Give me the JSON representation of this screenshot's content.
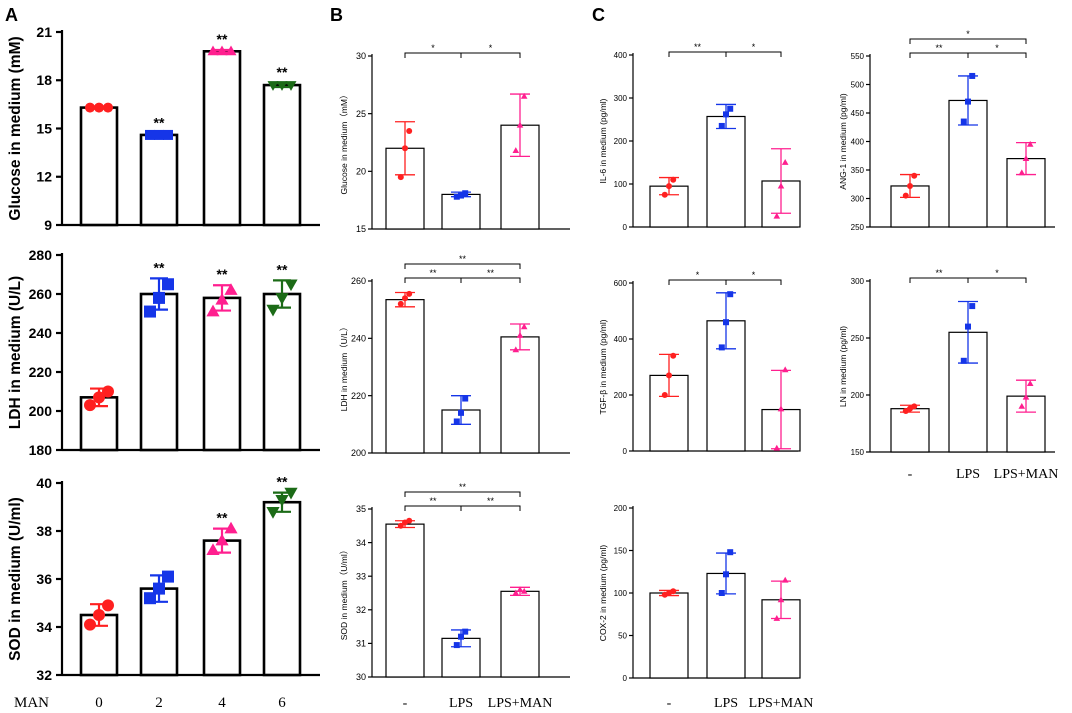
{
  "figure": {
    "panel_letters": [
      "A",
      "B",
      "C"
    ],
    "a_prefix_label": "MAN"
  },
  "chart_data": [
    {
      "id": "A1",
      "panel": "A",
      "type": "bar",
      "ylabel": "Glucose in medium (mM)",
      "categories": [
        "0",
        "2",
        "4",
        "6"
      ],
      "show_xlabels": false,
      "ylim": [
        9,
        21
      ],
      "yticks": [
        9,
        12,
        15,
        18,
        21
      ],
      "values": [
        16.3,
        14.6,
        19.8,
        17.7
      ],
      "errors": [
        0.05,
        0.1,
        0.08,
        0.12
      ],
      "points": [
        [
          16.3,
          16.3,
          16.3
        ],
        [
          14.6,
          14.6,
          14.6
        ],
        [
          19.8,
          19.8,
          19.8
        ],
        [
          17.7,
          17.7,
          17.7
        ]
      ],
      "annotations": [
        "",
        "**",
        "**",
        "**"
      ]
    },
    {
      "id": "A2",
      "panel": "A",
      "type": "bar",
      "ylabel": "LDH in medium (U/L)",
      "categories": [
        "0",
        "2",
        "4",
        "6"
      ],
      "show_xlabels": false,
      "ylim": [
        180,
        280
      ],
      "yticks": [
        180,
        200,
        220,
        240,
        260,
        280
      ],
      "values": [
        207,
        260,
        258,
        260
      ],
      "errors": [
        4.5,
        8,
        6.5,
        7
      ],
      "points": [
        [
          203,
          207,
          210
        ],
        [
          251,
          258,
          265
        ],
        [
          251,
          257,
          262
        ],
        [
          252,
          258,
          265
        ]
      ],
      "annotations": [
        "",
        "**",
        "**",
        "**"
      ]
    },
    {
      "id": "A3",
      "panel": "A",
      "type": "bar",
      "ylabel": "SOD in medium (U/ml)",
      "categories": [
        "0",
        "2",
        "4",
        "6"
      ],
      "show_xlabels": true,
      "ylim": [
        32,
        40
      ],
      "yticks": [
        32,
        34,
        36,
        38,
        40
      ],
      "values": [
        34.5,
        35.6,
        37.6,
        39.2
      ],
      "errors": [
        0.45,
        0.55,
        0.5,
        0.4
      ],
      "points": [
        [
          34.1,
          34.5,
          34.9
        ],
        [
          35.2,
          35.6,
          36.1
        ],
        [
          37.2,
          37.6,
          38.1
        ],
        [
          38.8,
          39.3,
          39.6
        ]
      ],
      "annotations": [
        "",
        "",
        "**",
        "**"
      ]
    },
    {
      "id": "B1",
      "panel": "B",
      "type": "bar",
      "ylabel": "Glucose in medium（mM）",
      "categories": [
        "-",
        "LPS",
        "LPS+MAN"
      ],
      "show_xlabels": false,
      "ylim": [
        15,
        30
      ],
      "yticks": [
        15,
        20,
        25,
        30
      ],
      "values": [
        22,
        18,
        24
      ],
      "errors": [
        2.3,
        0.2,
        2.7
      ],
      "points": [
        [
          19.5,
          22,
          23.5
        ],
        [
          17.8,
          17.9,
          18.1
        ],
        [
          21.8,
          24,
          26.5
        ]
      ],
      "brackets": [
        {
          "from": 0,
          "to": 1,
          "label": "*"
        },
        {
          "from": 1,
          "to": 2,
          "label": "*"
        }
      ]
    },
    {
      "id": "B2",
      "panel": "B",
      "type": "bar",
      "ylabel": "LDH in medium（U/L）",
      "categories": [
        "-",
        "LPS",
        "LPS+MAN"
      ],
      "show_xlabels": false,
      "ylim": [
        200,
        260
      ],
      "yticks": [
        200,
        220,
        240,
        260
      ],
      "values": [
        253.5,
        215,
        240.5
      ],
      "errors": [
        2.5,
        5,
        4.5
      ],
      "points": [
        [
          252,
          254,
          255.5
        ],
        [
          211,
          214,
          219
        ],
        [
          236,
          241,
          244
        ]
      ],
      "brackets": [
        {
          "from": 0,
          "to": 1,
          "label": "**"
        },
        {
          "from": 1,
          "to": 2,
          "label": "**"
        },
        {
          "from": 0,
          "to": 2,
          "label": "**"
        }
      ]
    },
    {
      "id": "B3",
      "panel": "B",
      "type": "bar",
      "ylabel": "SOD in medium（U/ml）",
      "categories": [
        "-",
        "LPS",
        "LPS+MAN"
      ],
      "show_xlabels": true,
      "ylim": [
        30,
        35
      ],
      "yticks": [
        30,
        31,
        32,
        33,
        34,
        35
      ],
      "values": [
        34.55,
        31.15,
        32.55
      ],
      "errors": [
        0.1,
        0.25,
        0.12
      ],
      "points": [
        [
          34.5,
          34.6,
          34.65
        ],
        [
          30.95,
          31.2,
          31.35
        ],
        [
          32.5,
          32.6,
          32.55
        ]
      ],
      "brackets": [
        {
          "from": 0,
          "to": 1,
          "label": "**"
        },
        {
          "from": 1,
          "to": 2,
          "label": "**"
        },
        {
          "from": 0,
          "to": 2,
          "label": "**"
        }
      ]
    },
    {
      "id": "C1",
      "panel": "C",
      "type": "bar",
      "ylabel": "IL-6 in medium (pg/ml)",
      "categories": [
        "-",
        "LPS",
        "LPS+MAN"
      ],
      "show_xlabels": false,
      "ylim": [
        0,
        400
      ],
      "yticks": [
        0,
        100,
        200,
        300,
        400
      ],
      "values": [
        95,
        257,
        107
      ],
      "errors": [
        20,
        28,
        75
      ],
      "points": [
        [
          75,
          95,
          110
        ],
        [
          235,
          262,
          275
        ],
        [
          25,
          95,
          150
        ]
      ],
      "brackets": [
        {
          "from": 0,
          "to": 1,
          "label": "**"
        },
        {
          "from": 1,
          "to": 2,
          "label": "*"
        }
      ]
    },
    {
      "id": "C2",
      "panel": "C",
      "type": "bar",
      "ylabel": "ANG-1 in medium (pg/ml)",
      "categories": [
        "-",
        "LPS",
        "LPS+MAN"
      ],
      "show_xlabels": false,
      "ylim": [
        250,
        550
      ],
      "yticks": [
        250,
        300,
        350,
        400,
        450,
        500,
        550
      ],
      "values": [
        322,
        472,
        370
      ],
      "errors": [
        20,
        43,
        28
      ],
      "points": [
        [
          305,
          322,
          340
        ],
        [
          435,
          470,
          515
        ],
        [
          345,
          370,
          395
        ]
      ],
      "brackets": [
        {
          "from": 0,
          "to": 1,
          "label": "**"
        },
        {
          "from": 1,
          "to": 2,
          "label": "*"
        },
        {
          "from": 0,
          "to": 2,
          "label": "*"
        }
      ]
    },
    {
      "id": "C3",
      "panel": "C",
      "type": "bar",
      "ylabel": "TGF-β in medium (pg/ml)",
      "categories": [
        "-",
        "LPS",
        "LPS+MAN"
      ],
      "show_xlabels": false,
      "ylim": [
        0,
        600
      ],
      "yticks": [
        0,
        200,
        400,
        600
      ],
      "values": [
        270,
        465,
        148
      ],
      "errors": [
        75,
        100,
        140
      ],
      "points": [
        [
          200,
          270,
          340
        ],
        [
          370,
          460,
          560
        ],
        [
          10,
          150,
          290
        ]
      ],
      "brackets": [
        {
          "from": 0,
          "to": 1,
          "label": "*"
        },
        {
          "from": 1,
          "to": 2,
          "label": "*"
        }
      ]
    },
    {
      "id": "C4",
      "panel": "C",
      "type": "bar",
      "ylabel": "LN in medium (pg/ml)",
      "categories": [
        "-",
        "LPS",
        "LPS+MAN"
      ],
      "show_xlabels": true,
      "ylim": [
        150,
        300
      ],
      "yticks": [
        150,
        200,
        250,
        300
      ],
      "values": [
        188,
        255,
        199
      ],
      "errors": [
        3,
        27,
        14
      ],
      "points": [
        [
          186,
          188,
          190
        ],
        [
          230,
          260,
          278
        ],
        [
          190,
          198,
          210
        ]
      ],
      "brackets": [
        {
          "from": 0,
          "to": 1,
          "label": "**"
        },
        {
          "from": 1,
          "to": 2,
          "label": "*"
        }
      ]
    },
    {
      "id": "C5",
      "panel": "C",
      "type": "bar",
      "ylabel": "COX-2 in medium (pg/ml)",
      "categories": [
        "-",
        "LPS",
        "LPS+MAN"
      ],
      "show_xlabels": true,
      "ylim": [
        0,
        200
      ],
      "yticks": [
        0,
        50,
        100,
        150,
        200
      ],
      "values": [
        100,
        123,
        92
      ],
      "errors": [
        3,
        24,
        22
      ],
      "points": [
        [
          98,
          100,
          102
        ],
        [
          100,
          122,
          148
        ],
        [
          70,
          92,
          115
        ]
      ],
      "brackets": []
    }
  ],
  "colors": {
    "A": [
      "#ff2020",
      "#1535e8",
      "#ff1f8f",
      "#1c6b17"
    ],
    "BC": [
      "#ff2020",
      "#1535e8",
      "#ff1f8f"
    ]
  }
}
